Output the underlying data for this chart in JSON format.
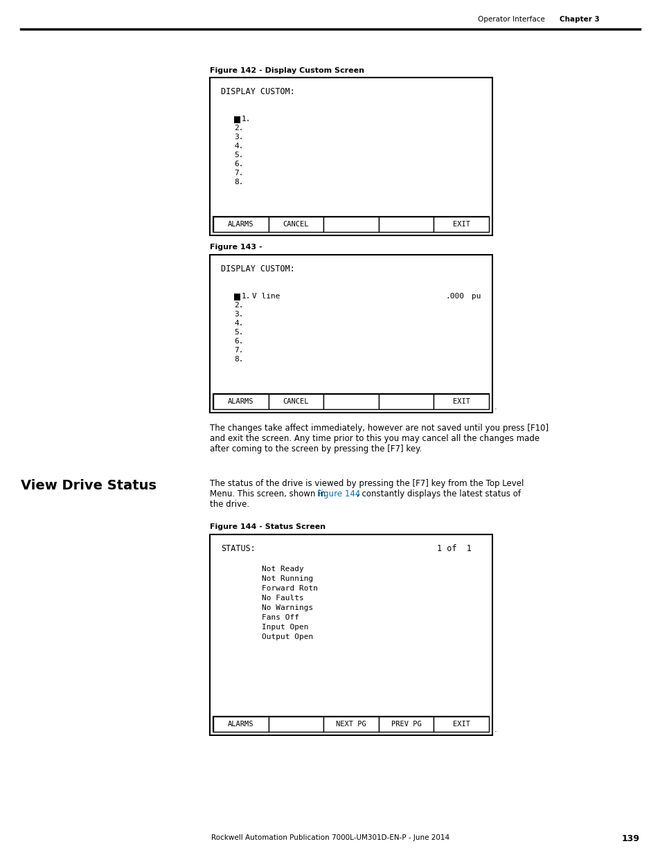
{
  "page_header_left": "Operator Interface",
  "page_header_right": "Chapter 3",
  "page_footer": "Rockwell Automation Publication 7000L-UM301D-EN-P - June 2014",
  "page_number": "139",
  "fig142_caption": "Figure 142 - Display Custom Screen",
  "fig142_title": "DISPLAY CUSTOM:",
  "fig142_list_first": "1.",
  "fig142_list_rest": [
    "2.",
    "3.",
    "4.",
    "5.",
    "6.",
    "7.",
    "8."
  ],
  "fig142_buttons": [
    "ALARMS",
    "CANCEL",
    "",
    "",
    "EXIT"
  ],
  "fig143_caption": "Figure 143 -",
  "fig143_title": "DISPLAY CUSTOM:",
  "fig143_line1_num": "1.",
  "fig143_line1_name": "V line",
  "fig143_line1_value": ".000",
  "fig143_line1_unit": "pu",
  "fig143_list_rest": [
    "2.",
    "3.",
    "4.",
    "5.",
    "6.",
    "7.",
    "8."
  ],
  "fig143_buttons": [
    "ALARMS",
    "CANCEL",
    "",
    "",
    "EXIT"
  ],
  "body_text1": "The changes take affect immediately, however are not saved until you press [F10]",
  "body_text2": "and exit the screen. Any time prior to this you may cancel all the changes made",
  "body_text3": "after coming to the screen by pressing the [F7] key.",
  "section_title": "View Drive Status",
  "body_text4": "The status of the drive is viewed by pressing the [F7] key from the Top Level",
  "body_text5_part1": "Menu. This screen, shown in ",
  "body_text5_link": "Figure 144",
  "body_text5_part2": ", constantly displays the latest status of",
  "body_text6": "the drive.",
  "fig144_caption": "Figure 144 - Status Screen",
  "fig144_title": "STATUS:",
  "fig144_page": "1 of  1",
  "fig144_status_lines": [
    "Not Ready",
    "Not Running",
    "Forward Rotn",
    "No Faults",
    "No Warnings",
    "Fans Off",
    "Input Open",
    "Output Open"
  ],
  "fig144_buttons": [
    "ALARMS",
    "",
    "NEXT PG",
    "PREV PG",
    "EXIT"
  ],
  "bg_color": "#ffffff",
  "box_border": "#000000",
  "text_color": "#000000",
  "mono_color": "#000000",
  "link_color": "#0070c0"
}
